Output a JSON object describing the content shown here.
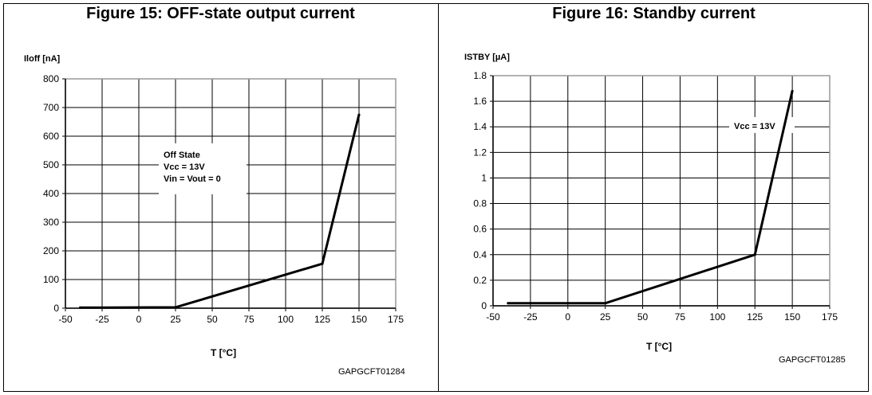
{
  "chart_data": [
    {
      "type": "line",
      "title": "Figure 15: OFF-state output current",
      "ylabel": "Iloff [nA]",
      "xlabel": "T [°C]",
      "code": "GAPGCFT01284",
      "x": [
        -40,
        25,
        125,
        150
      ],
      "series": [
        {
          "values": [
            2,
            3,
            155,
            675
          ]
        }
      ],
      "xlim": [
        -50,
        175
      ],
      "ylim": [
        0,
        800
      ],
      "xticks": [
        -50,
        -25,
        0,
        25,
        50,
        75,
        100,
        125,
        150,
        175
      ],
      "yticks": [
        0,
        100,
        200,
        300,
        400,
        500,
        600,
        700,
        800
      ],
      "xtick_labels": [
        "-50",
        "-25",
        "0",
        "25",
        "50",
        "75",
        "100",
        "125",
        "150",
        "175"
      ],
      "ytick_labels": [
        "0",
        "100",
        "200",
        "300",
        "400",
        "500",
        "600",
        "700",
        "800"
      ],
      "grid": true,
      "annotation": [
        "Off State",
        "Vcc = 13V",
        "Vin = Vout = 0"
      ],
      "line_color": "#000000"
    },
    {
      "type": "line",
      "title": "Figure 16: Standby current",
      "ylabel": "ISTBY [µA]",
      "xlabel": "T [°C]",
      "code": "GAPGCFT01285",
      "x": [
        -40,
        25,
        125,
        150
      ],
      "series": [
        {
          "values": [
            0.02,
            0.02,
            0.4,
            1.68
          ]
        }
      ],
      "xlim": [
        -50,
        175
      ],
      "ylim": [
        0,
        1.8
      ],
      "xticks": [
        -50,
        -25,
        0,
        25,
        50,
        75,
        100,
        125,
        150,
        175
      ],
      "yticks": [
        0,
        0.2,
        0.4,
        0.6,
        0.8,
        1.0,
        1.2,
        1.4,
        1.6,
        1.8
      ],
      "xtick_labels": [
        "-50",
        "-25",
        "0",
        "25",
        "50",
        "75",
        "100",
        "125",
        "150",
        "175"
      ],
      "ytick_labels": [
        "0",
        "0.2",
        "0.4",
        "0.6",
        "0.8",
        "1",
        "1.2",
        "1.4",
        "1.6",
        "1.8"
      ],
      "grid": true,
      "annotation": [
        "Vcc = 13V"
      ],
      "line_color": "#000000"
    }
  ]
}
